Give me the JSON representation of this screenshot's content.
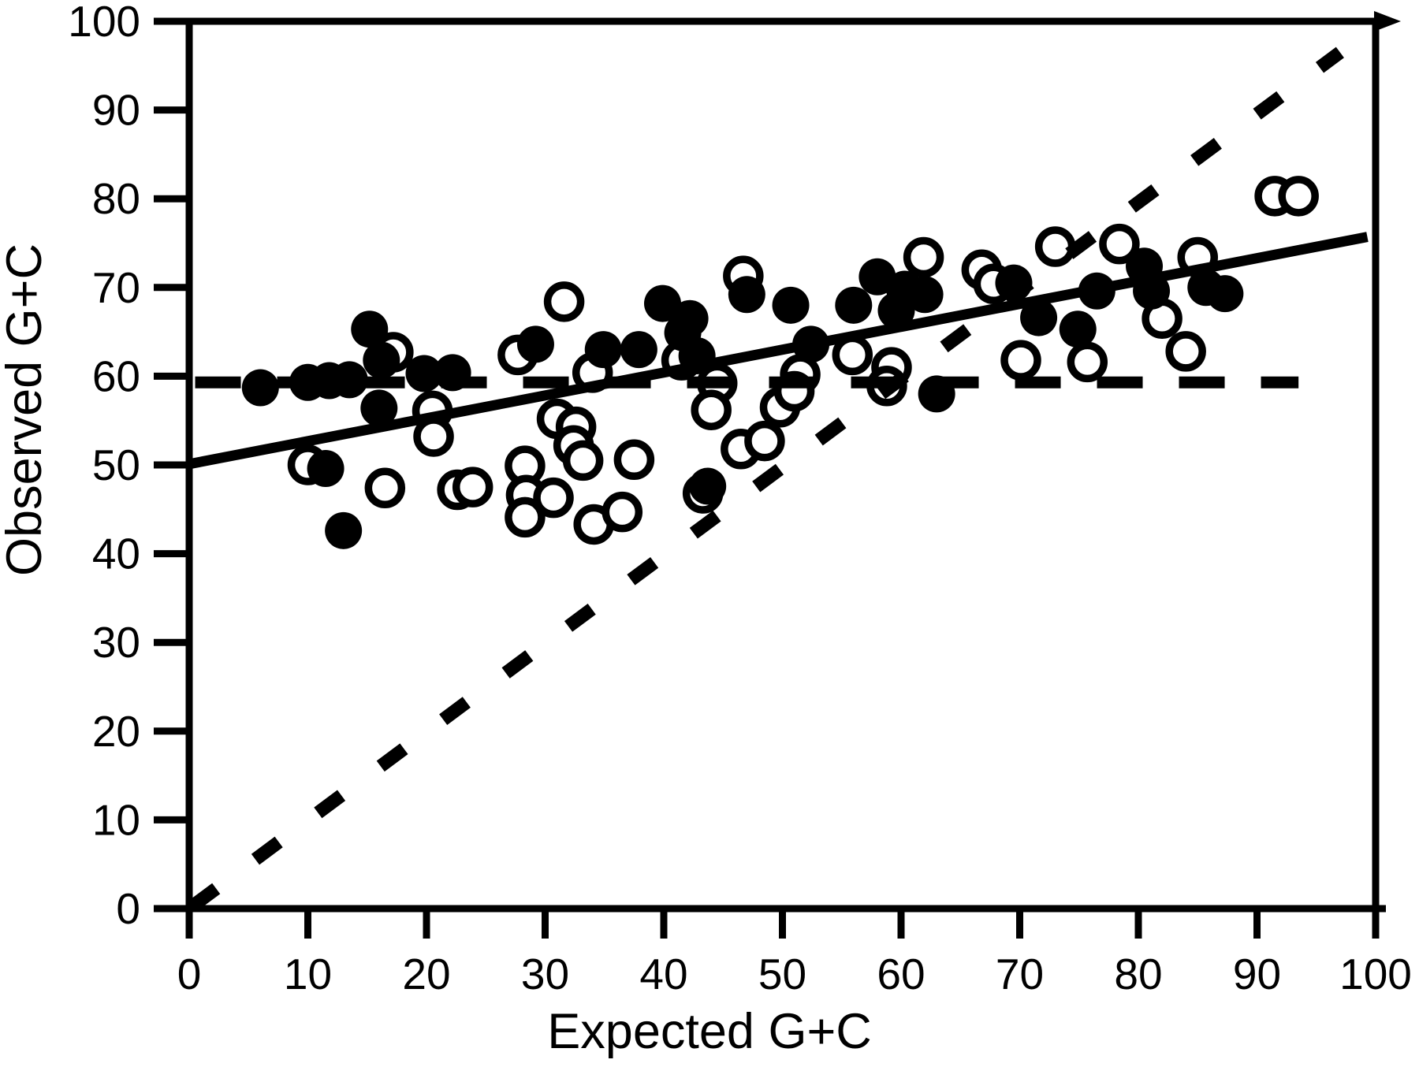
{
  "figure": {
    "background": "#ffffff",
    "ink": "#000000"
  },
  "chart_data": {
    "type": "scatter",
    "title": "",
    "xlabel": "Expected G+C",
    "ylabel": "Observed G+C",
    "xlim": [
      0,
      100
    ],
    "ylim": [
      0,
      100
    ],
    "x_ticks": [
      0,
      10,
      20,
      30,
      40,
      50,
      60,
      70,
      80,
      90,
      100
    ],
    "y_ticks": [
      0,
      10,
      20,
      30,
      40,
      50,
      60,
      70,
      80,
      90,
      100
    ],
    "grid": false,
    "legend_position": "none",
    "series": [
      {
        "name": "observed-filled",
        "marker": "filled-circle",
        "points": [
          [
            6,
            58.7
          ],
          [
            10,
            59.3
          ],
          [
            11.8,
            59.5
          ],
          [
            13.5,
            59.6
          ],
          [
            15.2,
            65.3
          ],
          [
            16.2,
            61.8
          ],
          [
            19.8,
            60.3
          ],
          [
            22.2,
            60.4
          ],
          [
            16,
            56.4
          ],
          [
            11.5,
            49.6
          ],
          [
            13,
            42.6
          ],
          [
            29.2,
            63.6
          ],
          [
            34.9,
            63
          ],
          [
            37.9,
            63
          ],
          [
            39.9,
            68.2
          ],
          [
            42.2,
            66.5
          ],
          [
            41.6,
            64.9
          ],
          [
            42.8,
            62.3
          ],
          [
            47,
            69.2
          ],
          [
            50.7,
            68
          ],
          [
            52.4,
            63.6
          ],
          [
            56,
            68
          ],
          [
            58,
            71.2
          ],
          [
            60.3,
            69.8
          ],
          [
            62,
            69.2
          ],
          [
            59.6,
            67.4
          ],
          [
            63,
            58
          ],
          [
            43.7,
            47.6
          ],
          [
            69.5,
            70.5
          ],
          [
            71.6,
            66.6
          ],
          [
            74.9,
            65.3
          ],
          [
            76.5,
            69.6
          ],
          [
            80.5,
            72.4
          ],
          [
            81.1,
            69.6
          ],
          [
            85.7,
            70
          ],
          [
            87.3,
            69.3
          ]
        ]
      },
      {
        "name": "observed-open",
        "marker": "open-circle",
        "points": [
          [
            17.2,
            62.7
          ],
          [
            20.5,
            56.1
          ],
          [
            20.6,
            53.2
          ],
          [
            10,
            50
          ],
          [
            16.5,
            47.4
          ],
          [
            22.6,
            47.2
          ],
          [
            23.9,
            47.5
          ],
          [
            27.7,
            62.4
          ],
          [
            31.6,
            68.4
          ],
          [
            34,
            60.4
          ],
          [
            31,
            55.2
          ],
          [
            32.6,
            54.3
          ],
          [
            32.4,
            52.2
          ],
          [
            33.2,
            50.5
          ],
          [
            28.3,
            49.9
          ],
          [
            28.4,
            46.6
          ],
          [
            28.3,
            44.1
          ],
          [
            30.7,
            46.3
          ],
          [
            34.1,
            43.3
          ],
          [
            36.5,
            44.7
          ],
          [
            37.5,
            50.6
          ],
          [
            41.5,
            61.8
          ],
          [
            44.5,
            59.2
          ],
          [
            44,
            56.2
          ],
          [
            43.3,
            46.8
          ],
          [
            46.5,
            51.8
          ],
          [
            48.5,
            52.7
          ],
          [
            46.7,
            71.3
          ],
          [
            49.8,
            56.5
          ],
          [
            51.5,
            60.2
          ],
          [
            51,
            58.3
          ],
          [
            55.9,
            62.4
          ],
          [
            59.2,
            61
          ],
          [
            58.8,
            58.9
          ],
          [
            61.9,
            73.4
          ],
          [
            66.8,
            72
          ],
          [
            67.8,
            70.4
          ],
          [
            70.1,
            61.8
          ],
          [
            73,
            74.6
          ],
          [
            75.7,
            61.6
          ],
          [
            78.4,
            74.9
          ],
          [
            84,
            62.8
          ],
          [
            85,
            73.4
          ],
          [
            82,
            66.5
          ],
          [
            91.5,
            80.3
          ],
          [
            93.5,
            80.3
          ]
        ]
      }
    ],
    "lines": [
      {
        "name": "regression-line",
        "style": "solid",
        "x1": 0,
        "y1": 50.1,
        "x2": 99.3,
        "y2": 75.7
      },
      {
        "name": "mean-line",
        "style": "dashed",
        "x1": 0.5,
        "y1": 59.3,
        "x2": 93.5,
        "y2": 59.3
      },
      {
        "name": "identity-line",
        "style": "dotted",
        "x1": 0.3,
        "y1": 0.3,
        "x2": 97,
        "y2": 96.5
      }
    ]
  }
}
